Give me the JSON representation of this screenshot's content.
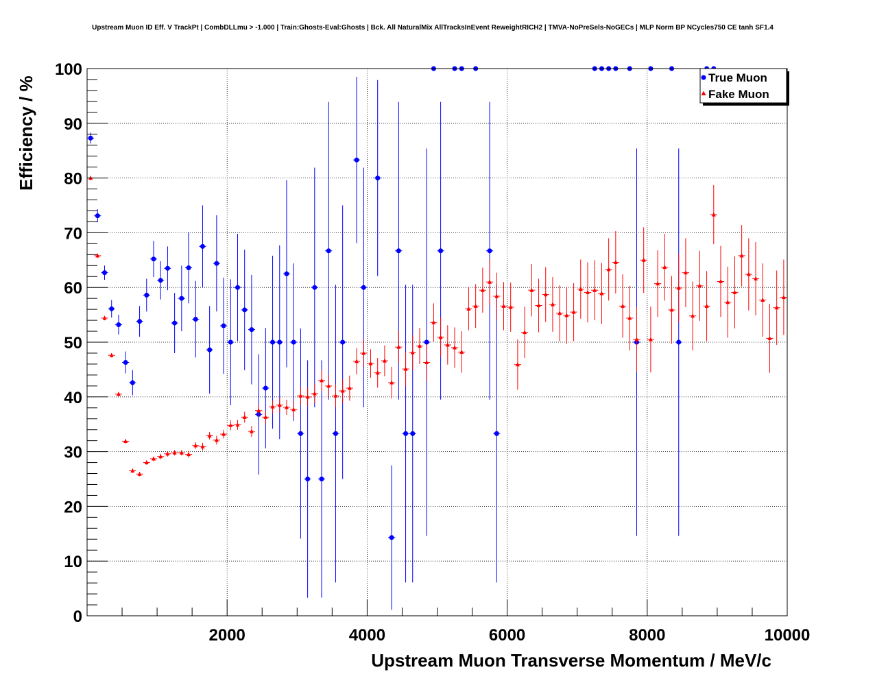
{
  "chart_data": {
    "type": "scatter",
    "title": "Upstream Muon ID Eff. V TrackPt | CombDLLmu > -1.000 | Train:Ghosts-Eval:Ghosts | Bck. All NaturalMix AllTracksInEvent ReweightRICH2 | TMVA-NoPreSels-NoGECs | MLP Norm BP NCycles750 CE tanh SF1.4",
    "xlabel": "Upstream Muon Transverse Momentum / MeV/c",
    "ylabel": "Efficiency / %",
    "xlim": [
      0,
      10000
    ],
    "ylim": [
      0,
      100
    ],
    "xticks": [
      2000,
      4000,
      6000,
      8000,
      10000
    ],
    "xtick_labels": [
      "2000",
      "4000",
      "6000",
      "8000",
      "10000"
    ],
    "yticks": [
      0,
      10,
      20,
      30,
      40,
      50,
      60,
      70,
      80,
      90,
      100
    ],
    "ytick_labels": [
      "0",
      "10",
      "20",
      "30",
      "40",
      "50",
      "60",
      "70",
      "80",
      "90",
      "100"
    ],
    "grid": true,
    "legend_position": "top-right",
    "series": [
      {
        "name": "True Muon",
        "color": "#0000ff",
        "marker": "circle",
        "points": [
          [
            50,
            87.3,
            1
          ],
          [
            150,
            73.1,
            1.2
          ],
          [
            250,
            62.7,
            1.3
          ],
          [
            350,
            56.1,
            1.6
          ],
          [
            450,
            53.2,
            1.8
          ],
          [
            550,
            46.3,
            2
          ],
          [
            650,
            42.6,
            2.3
          ],
          [
            750,
            53.8,
            2.8
          ],
          [
            850,
            58.6,
            3
          ],
          [
            950,
            65.2,
            3.3
          ],
          [
            1050,
            61.3,
            3.5
          ],
          [
            1150,
            63.5,
            4
          ],
          [
            1250,
            53.5,
            5.5
          ],
          [
            1350,
            58.0,
            6
          ],
          [
            1450,
            63.6,
            6.5
          ],
          [
            1550,
            54.2,
            7
          ],
          [
            1650,
            67.5,
            7.5
          ],
          [
            1750,
            48.6,
            8
          ],
          [
            1850,
            64.4,
            8.8
          ],
          [
            1950,
            53.0,
            8.8
          ],
          [
            2050,
            50.0,
            11.5
          ],
          [
            2150,
            60.0,
            9.8
          ],
          [
            2250,
            55.9,
            11
          ],
          [
            2350,
            52.3,
            10
          ],
          [
            2450,
            36.8,
            11
          ],
          [
            2550,
            41.6,
            11
          ],
          [
            2650,
            50.0,
            15.8
          ],
          [
            2750,
            50.0,
            17.7
          ],
          [
            2850,
            62.5,
            17.1
          ],
          [
            2950,
            50.0,
            14.4
          ],
          [
            3050,
            33.3,
            19.2
          ],
          [
            3150,
            25.0,
            21.7
          ],
          [
            3250,
            60.0,
            21.9
          ],
          [
            3350,
            25.0,
            21.7
          ],
          [
            3450,
            66.7,
            27.2
          ],
          [
            3550,
            33.3,
            27.2
          ],
          [
            3650,
            50.0,
            25
          ],
          [
            3850,
            83.3,
            15.2
          ],
          [
            3950,
            60.0,
            21.9
          ],
          [
            4150,
            80.0,
            17.9
          ],
          [
            4350,
            14.3,
            13.2
          ],
          [
            4450,
            66.7,
            27.2
          ],
          [
            4550,
            33.3,
            27.2
          ],
          [
            4650,
            33.3,
            27.2
          ],
          [
            4850,
            50.0,
            35.4
          ],
          [
            4950,
            100,
            0
          ],
          [
            5050,
            66.7,
            27.2
          ],
          [
            5250,
            100,
            0
          ],
          [
            5350,
            100,
            0
          ],
          [
            5550,
            100,
            0
          ],
          [
            5750,
            66.7,
            27.2
          ],
          [
            5850,
            33.3,
            27.2
          ],
          [
            7250,
            100,
            0
          ],
          [
            7350,
            100,
            0
          ],
          [
            7450,
            100,
            0
          ],
          [
            7550,
            100,
            0
          ],
          [
            7750,
            100,
            0
          ],
          [
            7850,
            50.0,
            35.4
          ],
          [
            8050,
            100,
            0
          ],
          [
            8350,
            100,
            0
          ],
          [
            8450,
            50.0,
            35.4
          ],
          [
            8850,
            100,
            0
          ],
          [
            8950,
            100,
            0
          ]
        ]
      },
      {
        "name": "Fake Muon",
        "color": "#ff0000",
        "marker": "triangle",
        "points": [
          [
            50,
            80.0,
            0.4
          ],
          [
            150,
            65.8,
            0.4
          ],
          [
            250,
            54.4,
            0.4
          ],
          [
            350,
            47.6,
            0.4
          ],
          [
            450,
            40.5,
            0.4
          ],
          [
            550,
            31.9,
            0.4
          ],
          [
            650,
            26.5,
            0.4
          ],
          [
            750,
            25.9,
            0.4
          ],
          [
            850,
            28.0,
            0.4
          ],
          [
            950,
            28.7,
            0.4
          ],
          [
            1050,
            29.1,
            0.5
          ],
          [
            1150,
            29.6,
            0.5
          ],
          [
            1250,
            29.8,
            0.5
          ],
          [
            1350,
            29.8,
            0.5
          ],
          [
            1450,
            29.5,
            0.6
          ],
          [
            1550,
            31.1,
            0.6
          ],
          [
            1650,
            30.9,
            0.7
          ],
          [
            1750,
            32.9,
            0.7
          ],
          [
            1850,
            32.1,
            0.8
          ],
          [
            1950,
            33.2,
            0.8
          ],
          [
            2050,
            34.8,
            0.9
          ],
          [
            2150,
            34.9,
            0.9
          ],
          [
            2250,
            36.3,
            1
          ],
          [
            2350,
            33.7,
            1
          ],
          [
            2450,
            37.5,
            1.1
          ],
          [
            2550,
            36.3,
            1.2
          ],
          [
            2650,
            38.2,
            1.2
          ],
          [
            2750,
            38.5,
            1.3
          ],
          [
            2850,
            38.1,
            1.4
          ],
          [
            2950,
            37.7,
            1.5
          ],
          [
            3050,
            40.2,
            1.6
          ],
          [
            3150,
            40.0,
            1.7
          ],
          [
            3250,
            40.6,
            1.8
          ],
          [
            3350,
            43.0,
            1.9
          ],
          [
            3450,
            42.0,
            2
          ],
          [
            3550,
            40.2,
            2.1
          ],
          [
            3650,
            41.1,
            2.2
          ],
          [
            3750,
            41.6,
            2.3
          ],
          [
            3850,
            46.5,
            2.4
          ],
          [
            3950,
            48.0,
            2.5
          ],
          [
            4050,
            46.1,
            2.6
          ],
          [
            4150,
            44.4,
            2.7
          ],
          [
            4250,
            46.6,
            2.8
          ],
          [
            4350,
            42.6,
            2.9
          ],
          [
            4450,
            49.1,
            3
          ],
          [
            4550,
            45.1,
            3.1
          ],
          [
            4650,
            48.1,
            3.2
          ],
          [
            4750,
            49.3,
            3.3
          ],
          [
            4850,
            46.3,
            3.4
          ],
          [
            4950,
            53.6,
            3.5
          ],
          [
            5050,
            50.9,
            3.6
          ],
          [
            5150,
            49.5,
            3.6
          ],
          [
            5250,
            49.0,
            3.7
          ],
          [
            5350,
            48.2,
            3.8
          ],
          [
            5450,
            56.1,
            3.9
          ],
          [
            5550,
            56.6,
            4
          ],
          [
            5650,
            59.5,
            4.1
          ],
          [
            5750,
            61.0,
            4.2
          ],
          [
            5850,
            58.4,
            4.3
          ],
          [
            5950,
            56.6,
            4.4
          ],
          [
            6050,
            56.4,
            4.5
          ],
          [
            6150,
            45.9,
            4.6
          ],
          [
            6250,
            51.8,
            4.7
          ],
          [
            6350,
            59.5,
            4.8
          ],
          [
            6450,
            56.7,
            4.9
          ],
          [
            6550,
            58.7,
            5
          ],
          [
            6650,
            56.9,
            5
          ],
          [
            6750,
            55.3,
            5.1
          ],
          [
            6850,
            54.9,
            5.2
          ],
          [
            6950,
            55.5,
            5.3
          ],
          [
            7050,
            59.7,
            5.4
          ],
          [
            7150,
            59.1,
            5.5
          ],
          [
            7250,
            59.5,
            5.5
          ],
          [
            7350,
            58.9,
            5.6
          ],
          [
            7450,
            63.3,
            5.7
          ],
          [
            7550,
            64.6,
            5.7
          ],
          [
            7650,
            56.6,
            5.8
          ],
          [
            7750,
            54.4,
            5.9
          ],
          [
            7850,
            50.5,
            5.9
          ],
          [
            7950,
            65.0,
            6
          ],
          [
            8050,
            50.5,
            6
          ],
          [
            8150,
            60.7,
            6.1
          ],
          [
            8250,
            63.7,
            6.1
          ],
          [
            8350,
            55.9,
            6.2
          ],
          [
            8450,
            59.9,
            6.2
          ],
          [
            8550,
            62.7,
            6.3
          ],
          [
            8650,
            54.8,
            6.3
          ],
          [
            8750,
            60.3,
            6.4
          ],
          [
            8850,
            56.6,
            6.4
          ],
          [
            8950,
            73.3,
            5.4
          ],
          [
            9050,
            61.1,
            6.5
          ],
          [
            9150,
            57.3,
            6.5
          ],
          [
            9250,
            59.1,
            6.6
          ],
          [
            9350,
            65.8,
            5.6
          ],
          [
            9450,
            62.4,
            6.6
          ],
          [
            9550,
            61.6,
            6.7
          ],
          [
            9650,
            57.7,
            6.7
          ],
          [
            9750,
            50.7,
            6.3
          ],
          [
            9850,
            56.3,
            6.8
          ],
          [
            9950,
            58.2,
            6.9
          ]
        ]
      }
    ]
  }
}
